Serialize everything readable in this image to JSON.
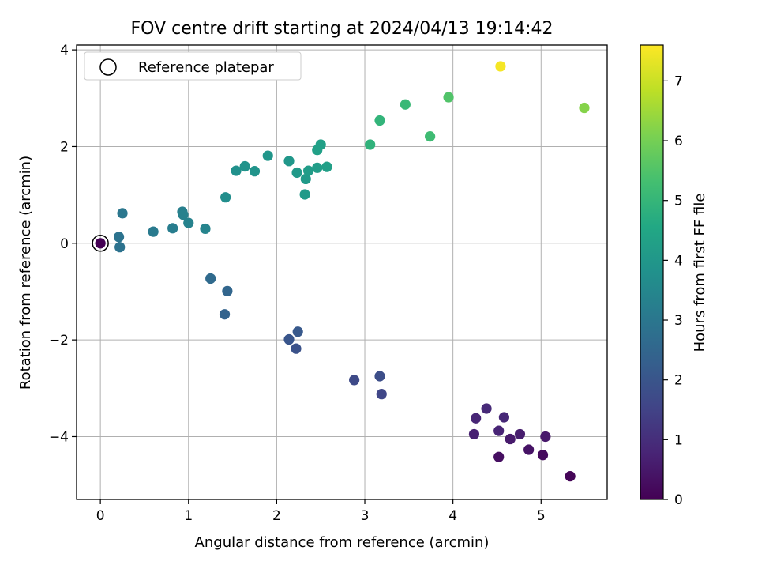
{
  "chart_data": {
    "type": "scatter",
    "title": "FOV centre drift starting at 2024/04/13 19:14:42",
    "xlabel": "Angular distance from reference (arcmin)",
    "ylabel": "Rotation from reference (arcmin)",
    "xlim": [
      -0.27,
      5.75
    ],
    "ylim": [
      -5.3,
      4.1
    ],
    "xticks": [
      0,
      1,
      2,
      3,
      4,
      5
    ],
    "yticks": [
      -4,
      -2,
      0,
      2,
      4
    ],
    "grid": true,
    "legend": {
      "position": "top-left",
      "entries": [
        "Reference platepar"
      ]
    },
    "reference_point": {
      "x": 0,
      "y": 0
    },
    "colorbar": {
      "label": "Hours from first FF file",
      "colormap": "viridis",
      "range": [
        0,
        7.6
      ],
      "ticks": [
        0,
        1,
        2,
        3,
        4,
        5,
        6,
        7
      ]
    },
    "points": [
      {
        "x": 5.33,
        "y": -4.82,
        "h": 0.1
      },
      {
        "x": 5.02,
        "y": -4.38,
        "h": 0.2
      },
      {
        "x": 4.52,
        "y": -4.42,
        "h": 0.3
      },
      {
        "x": 4.86,
        "y": -4.27,
        "h": 0.4
      },
      {
        "x": 5.05,
        "y": -4.0,
        "h": 0.5
      },
      {
        "x": 4.65,
        "y": -4.05,
        "h": 0.55
      },
      {
        "x": 4.76,
        "y": -3.95,
        "h": 0.6
      },
      {
        "x": 4.24,
        "y": -3.95,
        "h": 0.7
      },
      {
        "x": 4.52,
        "y": -3.88,
        "h": 0.75
      },
      {
        "x": 4.26,
        "y": -3.62,
        "h": 0.8
      },
      {
        "x": 4.58,
        "y": -3.6,
        "h": 0.85
      },
      {
        "x": 4.38,
        "y": -3.42,
        "h": 0.9
      },
      {
        "x": 3.19,
        "y": -3.12,
        "h": 1.6
      },
      {
        "x": 2.88,
        "y": -2.83,
        "h": 1.7
      },
      {
        "x": 3.17,
        "y": -2.75,
        "h": 1.8
      },
      {
        "x": 2.22,
        "y": -2.18,
        "h": 1.9
      },
      {
        "x": 2.14,
        "y": -1.99,
        "h": 2.0
      },
      {
        "x": 2.24,
        "y": -1.83,
        "h": 2.1
      },
      {
        "x": 1.41,
        "y": -1.47,
        "h": 2.4
      },
      {
        "x": 1.44,
        "y": -0.99,
        "h": 2.5
      },
      {
        "x": 1.25,
        "y": -0.73,
        "h": 2.6
      },
      {
        "x": 0.22,
        "y": -0.08,
        "h": 2.85
      },
      {
        "x": 0.21,
        "y": 0.13,
        "h": 2.9
      },
      {
        "x": 0.25,
        "y": 0.62,
        "h": 3.0
      },
      {
        "x": 0.6,
        "y": 0.24,
        "h": 3.1
      },
      {
        "x": 0.82,
        "y": 0.31,
        "h": 3.2
      },
      {
        "x": 0.93,
        "y": 0.65,
        "h": 3.25
      },
      {
        "x": 0.94,
        "y": 0.59,
        "h": 3.3
      },
      {
        "x": 1.0,
        "y": 0.42,
        "h": 3.35
      },
      {
        "x": 1.19,
        "y": 0.3,
        "h": 3.4
      },
      {
        "x": 1.42,
        "y": 0.95,
        "h": 3.7
      },
      {
        "x": 1.54,
        "y": 1.5,
        "h": 3.8
      },
      {
        "x": 1.64,
        "y": 1.59,
        "h": 3.85
      },
      {
        "x": 1.75,
        "y": 1.49,
        "h": 3.9
      },
      {
        "x": 1.9,
        "y": 1.81,
        "h": 3.95
      },
      {
        "x": 2.14,
        "y": 1.7,
        "h": 4.0
      },
      {
        "x": 2.23,
        "y": 1.46,
        "h": 4.05
      },
      {
        "x": 2.32,
        "y": 1.01,
        "h": 4.1
      },
      {
        "x": 2.33,
        "y": 1.33,
        "h": 4.1
      },
      {
        "x": 2.36,
        "y": 1.5,
        "h": 4.15
      },
      {
        "x": 2.46,
        "y": 1.56,
        "h": 4.2
      },
      {
        "x": 2.57,
        "y": 1.58,
        "h": 4.25
      },
      {
        "x": 2.46,
        "y": 1.93,
        "h": 4.3
      },
      {
        "x": 2.5,
        "y": 2.04,
        "h": 4.3
      },
      {
        "x": 3.06,
        "y": 2.04,
        "h": 4.9
      },
      {
        "x": 3.17,
        "y": 2.54,
        "h": 4.95
      },
      {
        "x": 3.46,
        "y": 2.87,
        "h": 5.1
      },
      {
        "x": 3.74,
        "y": 2.21,
        "h": 5.2
      },
      {
        "x": 3.95,
        "y": 3.02,
        "h": 5.5
      },
      {
        "x": 5.49,
        "y": 2.8,
        "h": 6.2
      },
      {
        "x": 4.54,
        "y": 3.66,
        "h": 7.5
      }
    ]
  }
}
